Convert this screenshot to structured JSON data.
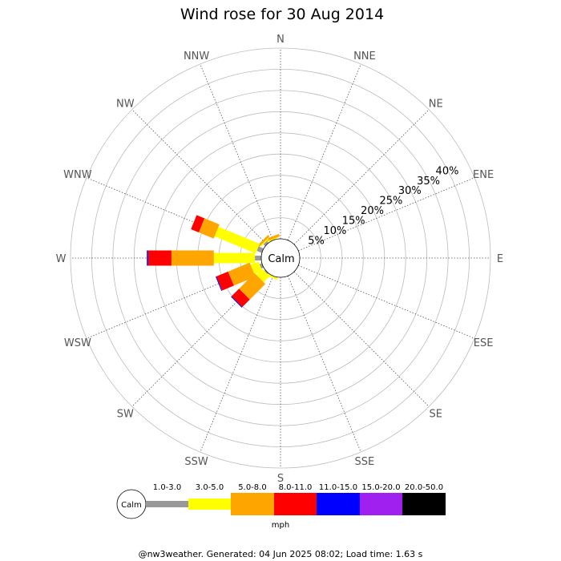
{
  "chart_data": {
    "type": "wind-rose",
    "title": "Wind rose for 30 Aug 2014",
    "directions": [
      "N",
      "NNE",
      "NE",
      "ENE",
      "E",
      "ESE",
      "SE",
      "SSE",
      "S",
      "SSW",
      "SW",
      "WSW",
      "W",
      "WNW",
      "NW",
      "NNW"
    ],
    "radial_ticks": [
      "5%",
      "10%",
      "15%",
      "20%",
      "25%",
      "30%",
      "35%",
      "40%"
    ],
    "radial_max": 45,
    "calm_label": "Calm",
    "unit_label": "mph",
    "bins": [
      {
        "label": "1.0-3.0",
        "color": "#999999"
      },
      {
        "label": "3.0-5.0",
        "color": "#ffff00"
      },
      {
        "label": "5.0-8.0",
        "color": "#ffa500"
      },
      {
        "label": "8.0-11.0",
        "color": "#ff0000"
      },
      {
        "label": "11.0-15.0",
        "color": "#0000ff"
      },
      {
        "label": "15.0-20.0",
        "color": "#a020f0"
      },
      {
        "label": "20.0-50.0",
        "color": "#000000"
      }
    ],
    "series": [
      {
        "direction": "NNW",
        "values": [
          0.0,
          0.3,
          0.6,
          0.0,
          0.0,
          0.0,
          0.0
        ]
      },
      {
        "direction": "NW",
        "values": [
          0.6,
          0.3,
          0.5,
          0.0,
          0.0,
          0.0,
          0.0
        ]
      },
      {
        "direction": "WNW",
        "values": [
          1.3,
          10.5,
          3.8,
          2.0,
          0.0,
          0.0,
          0.0
        ]
      },
      {
        "direction": "W",
        "values": [
          1.5,
          9.7,
          10.0,
          5.5,
          0.3,
          0.0,
          0.0
        ]
      },
      {
        "direction": "WSW",
        "values": [
          0.6,
          2.0,
          5.5,
          3.0,
          0.2,
          0.0,
          0.0
        ]
      },
      {
        "direction": "SW",
        "values": [
          0.3,
          2.0,
          5.2,
          2.5,
          0.2,
          0.0,
          0.0
        ]
      },
      {
        "direction": "SSW",
        "values": [
          0.0,
          0.5,
          0.0,
          0.0,
          0.0,
          0.0,
          0.0
        ]
      }
    ]
  },
  "footer": "@nw3weather. Generated: 04 Jun 2025 08:02; Load time: 1.63 s"
}
